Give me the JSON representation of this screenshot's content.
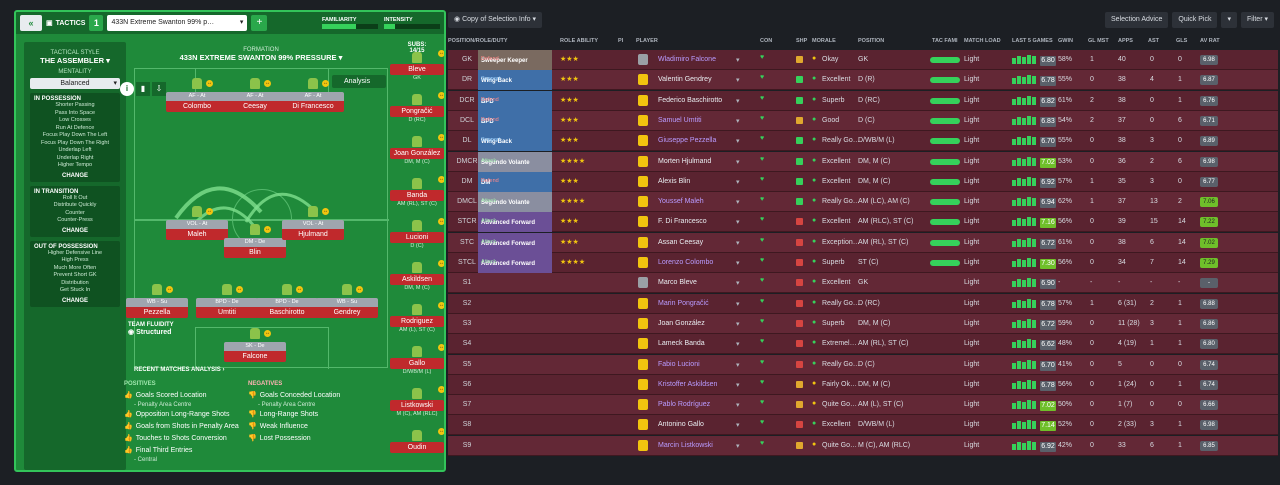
{
  "header": {
    "back_label": "«",
    "tactics_label": "TACTICS",
    "tactic_no": "1",
    "tactic_name": "433N Extreme Swanton 99% p…",
    "familiarity_label": "FAMILIARITY",
    "intensity_label": "INTENSITY",
    "familiarity": 0.6,
    "intensity": 0.2
  },
  "sidebar": {
    "style_label": "TACTICAL STYLE",
    "style": "THE ASSEMBLER",
    "mentality_label": "MENTALITY",
    "mentality": "Balanced",
    "possession": {
      "title": "IN POSSESSION",
      "items": [
        "Shorter Passing",
        "Pass Into Space",
        "Low Crosses",
        "Run At Defence",
        "Focus Play Down The Left",
        "Focus Play Down The Right",
        "Underlap Left",
        "Underlap Right",
        "Higher Tempo"
      ],
      "change": "CHANGE"
    },
    "transition": {
      "title": "IN TRANSITION",
      "items": [
        "Roll It Out",
        "Distribute Quickly",
        "Counter",
        "Counter-Press"
      ],
      "change": "CHANGE"
    },
    "outposs": {
      "title": "OUT OF POSSESSION",
      "items": [
        "Higher Defensive Line",
        "High Press",
        "Much More Often",
        "Prevent Short GK",
        "Distribution",
        "Get Stuck In"
      ],
      "change": "CHANGE"
    }
  },
  "formation": {
    "label": "FORMATION",
    "name": "433N EXTREME SWANTON 99% PRESSURE",
    "analysis": "Analysis",
    "subs_label": "SUBS:",
    "subs": "14/15",
    "fluidity_label": "TEAM FLUIDITY",
    "fluidity": "Structured",
    "players": [
      {
        "role": "AF - At",
        "name": "Colombo"
      },
      {
        "role": "AF - At",
        "name": "Ceesay"
      },
      {
        "role": "AF - At",
        "name": "Di Francesco"
      },
      {
        "role": "VOL - At",
        "name": "Maleh"
      },
      {
        "role": "DM - De",
        "name": "Blin"
      },
      {
        "role": "VOL - At",
        "name": "Hjulmand"
      },
      {
        "role": "WB - Su",
        "name": "Pezzella"
      },
      {
        "role": "BPD - De",
        "name": "Umtiti"
      },
      {
        "role": "BPD - De",
        "name": "Baschirotto"
      },
      {
        "role": "WB - Su",
        "name": "Gendrey"
      },
      {
        "role": "SK - De",
        "name": "Falcone"
      }
    ]
  },
  "subs": [
    {
      "name": "Bleve",
      "pos": "GK"
    },
    {
      "name": "Pongračić",
      "pos": "D (RC)"
    },
    {
      "name": "Joan González",
      "pos": "DM, M (C)"
    },
    {
      "name": "Banda",
      "pos": "AM (RL), ST (C)"
    },
    {
      "name": "Lucioni",
      "pos": "D (C)"
    },
    {
      "name": "Askildsen",
      "pos": "DM, M (C)"
    },
    {
      "name": "Rodriguez",
      "pos": "AM (L), ST (C)"
    },
    {
      "name": "Gallo",
      "pos": "D/WB/M (L)"
    },
    {
      "name": "Listkowski",
      "pos": "M (C), AM (RLC)"
    },
    {
      "name": "Oudin",
      "pos": ""
    }
  ],
  "matches": {
    "title": "RECENT MATCHES ANALYSIS ›",
    "pos_label": "POSITIVES",
    "neg_label": "NEGATIVES",
    "positives": [
      "Goals Scored Location",
      "Opposition Long-Range Shots",
      "Goals from Shots in Penalty Area",
      "Touches to Shots Conversion",
      "Final Third Entries"
    ],
    "pos_subs": [
      "- Penalty Area Centre",
      "- Central"
    ],
    "negatives": [
      "Goals Conceded Location",
      "Long-Range Shots",
      "Weak Influence",
      "Lost Possession"
    ],
    "neg_sub": "- Penalty Area Centre"
  },
  "toolbar": {
    "copy": "Copy of Selection Info",
    "advice": "Selection Advice",
    "quick": "Quick Pick",
    "filter": "Filter"
  },
  "columns": [
    "POSITION/ROLE/DUTY",
    "ROLE ABILITY",
    "PI",
    "PLAYER",
    "CON",
    "SHP",
    "MORALE",
    "POSITION",
    "TAC FAMI",
    "MATCH LOAD",
    "LAST 5 GAMES",
    "GWIN",
    "GL MST",
    "APPS",
    "AST",
    "GLS",
    "AV RAT"
  ],
  "rows": [
    {
      "pos": "GK",
      "role": "Sweeper Keeper",
      "duty": "Defend",
      "stars": "★★★",
      "player": "Wladimiro Falcone",
      "morale": "Okay",
      "position": "GK",
      "load": "Light",
      "last": "6.80",
      "gwin": "58%",
      "glm": "1",
      "apps": "40",
      "ast": "0",
      "gls": "0",
      "av": "6.98"
    },
    {
      "pos": "DR",
      "role": "Wing-Back",
      "duty": "Support",
      "stars": "★★★",
      "player": "Valentin Gendrey",
      "morale": "Excellent",
      "position": "D (R)",
      "load": "Light",
      "last": "6.78",
      "gwin": "55%",
      "glm": "0",
      "apps": "38",
      "ast": "4",
      "gls": "1",
      "av": "6.87"
    },
    {
      "pos": "DCR",
      "role": "BPD",
      "duty": "Defend",
      "stars": "★★★",
      "player": "Federico Baschirotto",
      "morale": "Superb",
      "position": "D (RC)",
      "load": "Light",
      "last": "6.82",
      "gwin": "61%",
      "glm": "2",
      "apps": "38",
      "ast": "0",
      "gls": "1",
      "av": "6.76"
    },
    {
      "pos": "DCL",
      "role": "BPD",
      "duty": "Defend",
      "stars": "★★★",
      "player": "Samuel Umtiti",
      "morale": "Good",
      "position": "D (C)",
      "load": "Light",
      "last": "6.83",
      "gwin": "54%",
      "glm": "2",
      "apps": "37",
      "ast": "0",
      "gls": "6",
      "av": "6.71"
    },
    {
      "pos": "DL",
      "role": "Wing-Back",
      "duty": "Support",
      "stars": "★★★",
      "player": "Giuseppe Pezzella",
      "morale": "Really Go…",
      "position": "D/WB/M (L)",
      "load": "Light",
      "last": "6.70",
      "gwin": "55%",
      "glm": "0",
      "apps": "38",
      "ast": "3",
      "gls": "0",
      "av": "6.89"
    },
    {
      "pos": "DMCR",
      "role": "Segundo Volante",
      "duty": "Attack",
      "stars": "★★★★",
      "player": "Morten Hjulmand",
      "morale": "Excellent",
      "position": "DM, M (C)",
      "load": "Light",
      "last": "7.02",
      "gwin": "53%",
      "glm": "0",
      "apps": "36",
      "ast": "2",
      "gls": "6",
      "av": "6.98"
    },
    {
      "pos": "DM",
      "role": "DM",
      "duty": "Defend",
      "stars": "★★★",
      "player": "Alexis Blin",
      "morale": "Excellent",
      "position": "DM, M (C)",
      "load": "Light",
      "last": "6.92",
      "gwin": "57%",
      "glm": "1",
      "apps": "35",
      "ast": "3",
      "gls": "0",
      "av": "6.77"
    },
    {
      "pos": "DMCL",
      "role": "Segundo Volante",
      "duty": "Attack",
      "stars": "★★★★",
      "player": "Youssef Maleh",
      "morale": "Really Go…",
      "position": "AM (LC), AM (C)",
      "load": "Light",
      "last": "6.94",
      "gwin": "62%",
      "glm": "1",
      "apps": "37",
      "ast": "13",
      "gls": "2",
      "av": "7.06"
    },
    {
      "pos": "STCR",
      "role": "Advanced Forward",
      "duty": "Attack",
      "stars": "★★★",
      "player": "F. Di Francesco",
      "morale": "Excellent",
      "position": "AM (RLC), ST (C)",
      "load": "Light",
      "last": "7.16",
      "gwin": "56%",
      "glm": "0",
      "apps": "39",
      "ast": "15",
      "gls": "14",
      "av": "7.22"
    },
    {
      "pos": "STC",
      "role": "Advanced Forward",
      "duty": "Attack",
      "stars": "★★★",
      "player": "Assan Ceesay",
      "morale": "Exception…",
      "position": "AM (RL), ST (C)",
      "load": "Light",
      "last": "6.72",
      "gwin": "61%",
      "glm": "0",
      "apps": "38",
      "ast": "6",
      "gls": "14",
      "av": "7.02"
    },
    {
      "pos": "STCL",
      "role": "Advanced Forward",
      "duty": "Attack",
      "stars": "★★★★",
      "player": "Lorenzo Colombo",
      "morale": "Superb",
      "position": "ST (C)",
      "load": "Light",
      "last": "7.30",
      "gwin": "56%",
      "glm": "0",
      "apps": "34",
      "ast": "7",
      "gls": "14",
      "av": "7.29"
    },
    {
      "pos": "S1",
      "role": "",
      "duty": "",
      "stars": "",
      "player": "Marco Bleve",
      "morale": "Excellent",
      "position": "GK",
      "load": "Light",
      "last": "6.90",
      "gwin": "-",
      "glm": "-",
      "apps": "-",
      "ast": "-",
      "gls": "-",
      "av": "-"
    },
    {
      "pos": "S2",
      "role": "",
      "duty": "",
      "stars": "",
      "player": "Marin Pongračić",
      "morale": "Really Go…",
      "position": "D (RC)",
      "load": "Light",
      "last": "6.78",
      "gwin": "57%",
      "glm": "1",
      "apps": "6 (31)",
      "ast": "2",
      "gls": "1",
      "av": "6.88"
    },
    {
      "pos": "S3",
      "role": "",
      "duty": "",
      "stars": "",
      "player": "Joan González",
      "morale": "Superb",
      "position": "DM, M (C)",
      "load": "Light",
      "last": "6.72",
      "gwin": "59%",
      "glm": "0",
      "apps": "11 (28)",
      "ast": "3",
      "gls": "1",
      "av": "6.86"
    },
    {
      "pos": "S4",
      "role": "",
      "duty": "",
      "stars": "",
      "player": "Lameck Banda",
      "morale": "Extremel…",
      "position": "AM (RL), ST (C)",
      "load": "Light",
      "last": "6.62",
      "gwin": "48%",
      "glm": "0",
      "apps": "4 (19)",
      "ast": "1",
      "gls": "1",
      "av": "6.80"
    },
    {
      "pos": "S5",
      "role": "",
      "duty": "",
      "stars": "",
      "player": "Fabio Lucioni",
      "morale": "Really Go…",
      "position": "D (C)",
      "load": "Light",
      "last": "6.70",
      "gwin": "41%",
      "glm": "0",
      "apps": "5",
      "ast": "0",
      "gls": "0",
      "av": "6.74"
    },
    {
      "pos": "S6",
      "role": "",
      "duty": "",
      "stars": "",
      "player": "Kristoffer Askildsen",
      "morale": "Fairly Ok…",
      "position": "DM, M (C)",
      "load": "Light",
      "last": "6.78",
      "gwin": "56%",
      "glm": "0",
      "apps": "1 (24)",
      "ast": "0",
      "gls": "1",
      "av": "6.74"
    },
    {
      "pos": "S7",
      "role": "",
      "duty": "",
      "stars": "",
      "player": "Pablo Rodríguez",
      "morale": "Quite Go…",
      "position": "AM (L), ST (C)",
      "load": "Light",
      "last": "7.02",
      "gwin": "50%",
      "glm": "0",
      "apps": "1 (7)",
      "ast": "0",
      "gls": "0",
      "av": "6.66"
    },
    {
      "pos": "S8",
      "role": "",
      "duty": "",
      "stars": "",
      "player": "Antonino Gallo",
      "morale": "Excellent",
      "position": "D/WB/M (L)",
      "load": "Light",
      "last": "7.14",
      "gwin": "52%",
      "glm": "0",
      "apps": "2 (33)",
      "ast": "3",
      "gls": "1",
      "av": "6.98"
    },
    {
      "pos": "S9",
      "role": "",
      "duty": "",
      "stars": "",
      "player": "Marcin Listkowski",
      "morale": "Quite Go…",
      "position": "M (C), AM (RLC)",
      "load": "Light",
      "last": "6.92",
      "gwin": "42%",
      "glm": "0",
      "apps": "33",
      "ast": "6",
      "gls": "1",
      "av": "6.85"
    }
  ]
}
